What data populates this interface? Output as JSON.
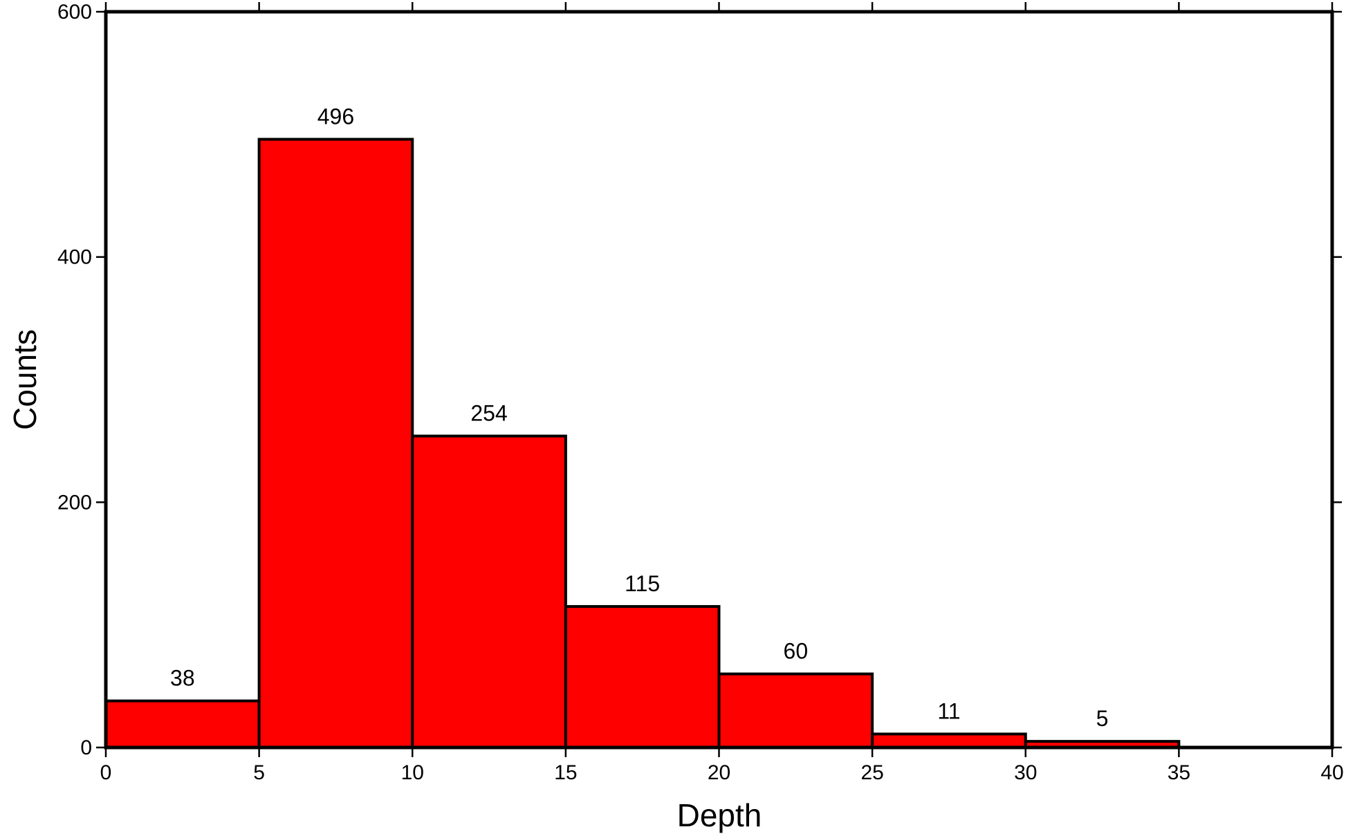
{
  "chart_data": {
    "type": "histogram",
    "bins": [
      0,
      5,
      10,
      15,
      20,
      25,
      30,
      35
    ],
    "values": [
      38,
      496,
      254,
      115,
      60,
      11,
      5
    ],
    "color": "#ff0000",
    "xlabel": "Depth",
    "ylabel": "Counts",
    "xlim": [
      0,
      40
    ],
    "ylim": [
      0,
      600
    ],
    "xticks": [
      0,
      5,
      10,
      15,
      20,
      25,
      30,
      35,
      40
    ],
    "yticks": [
      0,
      200,
      400,
      600
    ]
  }
}
